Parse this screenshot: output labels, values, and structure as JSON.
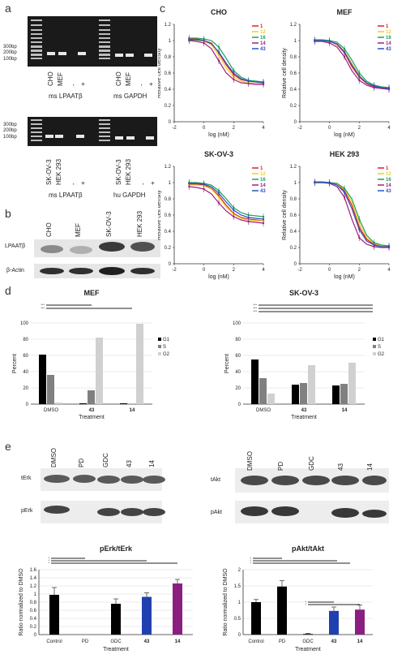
{
  "panel_letters": {
    "a": "a",
    "b": "b",
    "c": "c",
    "d": "d",
    "e": "e"
  },
  "gel_ladder": [
    "300bp",
    "200bp",
    "100bp"
  ],
  "gel_top": {
    "lanes_left": [
      "CHO",
      "MEF",
      "-",
      "+"
    ],
    "lanes_right": [
      "CHO",
      "MEF",
      "-",
      "+"
    ],
    "caption_left": "ms LPAATβ",
    "caption_right": "ms GAPDH"
  },
  "gel_bottom": {
    "lanes_left": [
      "SK-OV-3",
      "HEK 293",
      "-",
      "+"
    ],
    "lanes_right": [
      "SK-OV-3",
      "HEK 293",
      "-",
      "+"
    ],
    "caption_left": "ms LPAATβ",
    "caption_right": "hu GAPDH"
  },
  "western_b": {
    "lanes": [
      "CHO",
      "MEF",
      "SK-OV-3",
      "HEK 293"
    ],
    "rows": [
      "LPAATβ",
      "β-Actin"
    ]
  },
  "western_e_left": {
    "lanes": [
      "DMSO",
      "PD",
      "GDC",
      "43",
      "14"
    ],
    "rows": [
      "tErk",
      "pErk"
    ]
  },
  "western_e_right": {
    "lanes": [
      "DMSO",
      "PD",
      "GDC",
      "43",
      "14"
    ],
    "rows": [
      "tAkt",
      "pAkt"
    ]
  },
  "chart_data": [
    {
      "type": "line",
      "title": "CHO",
      "xlabel": "log (nM)",
      "ylabel": "Relative cell density",
      "xlim": [
        -2,
        4
      ],
      "ylim": [
        0,
        1.2
      ],
      "xticks": [
        -2,
        0,
        2,
        4
      ],
      "yticks": [
        0,
        0.2,
        0.4,
        0.6,
        0.8,
        1,
        1.2
      ],
      "x": [
        -1,
        -0.5,
        0,
        0.5,
        1,
        1.5,
        2,
        2.5,
        3,
        3.5,
        4
      ],
      "series": [
        {
          "name": "1",
          "color": "#e02020",
          "values": [
            1.02,
            1.02,
            1.0,
            0.97,
            0.85,
            0.7,
            0.58,
            0.52,
            0.5,
            0.49,
            0.48
          ]
        },
        {
          "name": "12",
          "color": "#f0d020",
          "values": [
            1.0,
            1.0,
            0.99,
            0.95,
            0.82,
            0.66,
            0.55,
            0.5,
            0.48,
            0.47,
            0.47
          ]
        },
        {
          "name": "16",
          "color": "#20a060",
          "values": [
            1.03,
            1.03,
            1.02,
            1.0,
            0.92,
            0.78,
            0.63,
            0.55,
            0.51,
            0.5,
            0.49
          ]
        },
        {
          "name": "14",
          "color": "#a02080",
          "values": [
            1.0,
            0.99,
            0.97,
            0.9,
            0.75,
            0.6,
            0.52,
            0.48,
            0.47,
            0.46,
            0.46
          ]
        },
        {
          "name": "43",
          "color": "#3050c0",
          "values": [
            1.01,
            1.01,
            1.0,
            0.96,
            0.86,
            0.72,
            0.6,
            0.53,
            0.5,
            0.49,
            0.48
          ]
        }
      ]
    },
    {
      "type": "line",
      "title": "MEF",
      "xlabel": "log (nM)",
      "ylabel": "Relative cell density",
      "xlim": [
        -2,
        4
      ],
      "ylim": [
        0,
        1.2
      ],
      "xticks": [
        -2,
        0,
        2,
        4
      ],
      "yticks": [
        0,
        0.2,
        0.4,
        0.6,
        0.8,
        1,
        1.2
      ],
      "x": [
        -1,
        -0.5,
        0,
        0.5,
        1,
        1.5,
        2,
        2.5,
        3,
        3.5,
        4
      ],
      "series": [
        {
          "name": "1",
          "color": "#e02020",
          "values": [
            1.0,
            1.0,
            0.99,
            0.95,
            0.85,
            0.68,
            0.55,
            0.47,
            0.43,
            0.41,
            0.4
          ]
        },
        {
          "name": "12",
          "color": "#f0d020",
          "values": [
            1.0,
            1.0,
            0.99,
            0.96,
            0.87,
            0.72,
            0.57,
            0.48,
            0.44,
            0.42,
            0.41
          ]
        },
        {
          "name": "16",
          "color": "#20a060",
          "values": [
            1.01,
            1.01,
            1.0,
            0.98,
            0.9,
            0.76,
            0.6,
            0.5,
            0.45,
            0.43,
            0.42
          ]
        },
        {
          "name": "14",
          "color": "#a02080",
          "values": [
            0.99,
            0.99,
            0.97,
            0.92,
            0.8,
            0.63,
            0.51,
            0.45,
            0.42,
            0.41,
            0.4
          ]
        },
        {
          "name": "43",
          "color": "#3050c0",
          "values": [
            1.0,
            1.0,
            0.99,
            0.96,
            0.86,
            0.7,
            0.56,
            0.48,
            0.44,
            0.42,
            0.41
          ]
        }
      ]
    },
    {
      "type": "line",
      "title": "SK-OV-3",
      "xlabel": "log (nM)",
      "ylabel": "Relative cell density",
      "xlim": [
        -2,
        4
      ],
      "ylim": [
        0,
        1.2
      ],
      "xticks": [
        -2,
        0,
        2,
        4
      ],
      "yticks": [
        0,
        0.2,
        0.4,
        0.6,
        0.8,
        1,
        1.2
      ],
      "x": [
        -1,
        -0.5,
        0,
        0.5,
        1,
        1.5,
        2,
        2.5,
        3,
        3.5,
        4
      ],
      "series": [
        {
          "name": "1",
          "color": "#e02020",
          "values": [
            0.98,
            0.98,
            0.97,
            0.93,
            0.84,
            0.72,
            0.62,
            0.57,
            0.55,
            0.54,
            0.53
          ]
        },
        {
          "name": "12",
          "color": "#f0d020",
          "values": [
            0.97,
            0.97,
            0.96,
            0.92,
            0.82,
            0.7,
            0.61,
            0.56,
            0.54,
            0.53,
            0.53
          ]
        },
        {
          "name": "16",
          "color": "#20a060",
          "values": [
            1.0,
            1.0,
            0.99,
            0.97,
            0.9,
            0.8,
            0.69,
            0.63,
            0.6,
            0.59,
            0.58
          ]
        },
        {
          "name": "14",
          "color": "#a02080",
          "values": [
            0.95,
            0.94,
            0.92,
            0.86,
            0.75,
            0.65,
            0.58,
            0.54,
            0.52,
            0.51,
            0.5
          ]
        },
        {
          "name": "43",
          "color": "#3050c0",
          "values": [
            0.99,
            0.99,
            0.98,
            0.95,
            0.87,
            0.76,
            0.66,
            0.6,
            0.57,
            0.56,
            0.55
          ]
        }
      ]
    },
    {
      "type": "line",
      "title": "HEK 293",
      "xlabel": "log (nM)",
      "ylabel": "Relative cell density",
      "xlim": [
        -2,
        4
      ],
      "ylim": [
        0,
        1.2
      ],
      "xticks": [
        -2,
        0,
        2,
        4
      ],
      "yticks": [
        0,
        0.2,
        0.4,
        0.6,
        0.8,
        1,
        1.2
      ],
      "x": [
        -1,
        -0.5,
        0,
        0.5,
        1,
        1.5,
        2,
        2.5,
        3,
        3.5,
        4
      ],
      "series": [
        {
          "name": "1",
          "color": "#e02020",
          "values": [
            1.0,
            1.0,
            1.0,
            0.98,
            0.9,
            0.72,
            0.45,
            0.3,
            0.24,
            0.22,
            0.21
          ]
        },
        {
          "name": "12",
          "color": "#f0d020",
          "values": [
            1.0,
            1.0,
            1.0,
            0.98,
            0.92,
            0.76,
            0.5,
            0.32,
            0.25,
            0.22,
            0.21
          ]
        },
        {
          "name": "16",
          "color": "#20a060",
          "values": [
            1.01,
            1.01,
            1.0,
            0.99,
            0.93,
            0.8,
            0.55,
            0.35,
            0.26,
            0.23,
            0.22
          ]
        },
        {
          "name": "14",
          "color": "#a02080",
          "values": [
            1.0,
            1.0,
            0.99,
            0.95,
            0.82,
            0.55,
            0.32,
            0.24,
            0.21,
            0.2,
            0.2
          ]
        },
        {
          "name": "43",
          "color": "#3050c0",
          "values": [
            1.0,
            1.0,
            1.0,
            0.97,
            0.88,
            0.68,
            0.42,
            0.28,
            0.23,
            0.21,
            0.21
          ]
        }
      ]
    },
    {
      "type": "bar",
      "title": "MEF",
      "xlabel": "Treatment",
      "ylabel": "Percent",
      "ylim": [
        0,
        100
      ],
      "yticks": [
        0,
        20,
        40,
        60,
        80,
        100
      ],
      "categories": [
        "DMSO",
        "43",
        "14"
      ],
      "series": [
        {
          "name": "G1",
          "color": "#000000",
          "values": [
            61,
            1,
            1
          ]
        },
        {
          "name": "S",
          "color": "#808080",
          "values": [
            36,
            17,
            0.5
          ]
        },
        {
          "name": "G2",
          "color": "#d0d0d0",
          "values": [
            2,
            82,
            99
          ]
        }
      ],
      "significance": [
        "***",
        "***"
      ]
    },
    {
      "type": "bar",
      "title": "SK-OV-3",
      "xlabel": "Treatment",
      "ylabel": "Percent",
      "ylim": [
        0,
        100
      ],
      "yticks": [
        0,
        20,
        40,
        60,
        80,
        100
      ],
      "categories": [
        "DMSO",
        "43",
        "14"
      ],
      "series": [
        {
          "name": "G1",
          "color": "#000000",
          "values": [
            55,
            24,
            23
          ]
        },
        {
          "name": "S",
          "color": "#808080",
          "values": [
            32,
            26,
            25
          ]
        },
        {
          "name": "G2",
          "color": "#d0d0d0",
          "values": [
            13,
            48,
            51
          ]
        }
      ],
      "significance": [
        "***",
        "***",
        "***"
      ]
    },
    {
      "type": "bar",
      "title": "pErk/tErk",
      "xlabel": "Treatment",
      "ylabel": "Ratio normalized to DMSO",
      "ylim": [
        0,
        1.6
      ],
      "yticks": [
        0,
        0.2,
        0.4,
        0.6,
        0.8,
        1,
        1.2,
        1.4,
        1.6
      ],
      "categories": [
        "Control",
        "PD",
        "GDC",
        "43",
        "14"
      ],
      "values": [
        0.98,
        0.0,
        0.76,
        0.93,
        1.26
      ],
      "errors": [
        0.18,
        0.0,
        0.12,
        0.1,
        0.1
      ],
      "colors": [
        "#000000",
        "#000000",
        "#000000",
        "#2040b0",
        "#8a1f80"
      ],
      "significance": [
        "*",
        "*",
        "*"
      ]
    },
    {
      "type": "bar",
      "title": "pAkt/tAkt",
      "xlabel": "Treatment",
      "ylabel": "Ratio normalized to DMSO",
      "ylim": [
        0,
        2
      ],
      "yticks": [
        0,
        0.5,
        1,
        1.5,
        2
      ],
      "categories": [
        "Control",
        "PD",
        "GDC",
        "43",
        "14"
      ],
      "values": [
        1.0,
        1.48,
        0.02,
        0.73,
        0.77
      ],
      "errors": [
        0.08,
        0.18,
        0.02,
        0.12,
        0.14
      ],
      "colors": [
        "#000000",
        "#000000",
        "#000000",
        "#2040b0",
        "#8a1f80"
      ],
      "significance": [
        "*",
        "*",
        "*",
        "*",
        "*"
      ]
    }
  ]
}
